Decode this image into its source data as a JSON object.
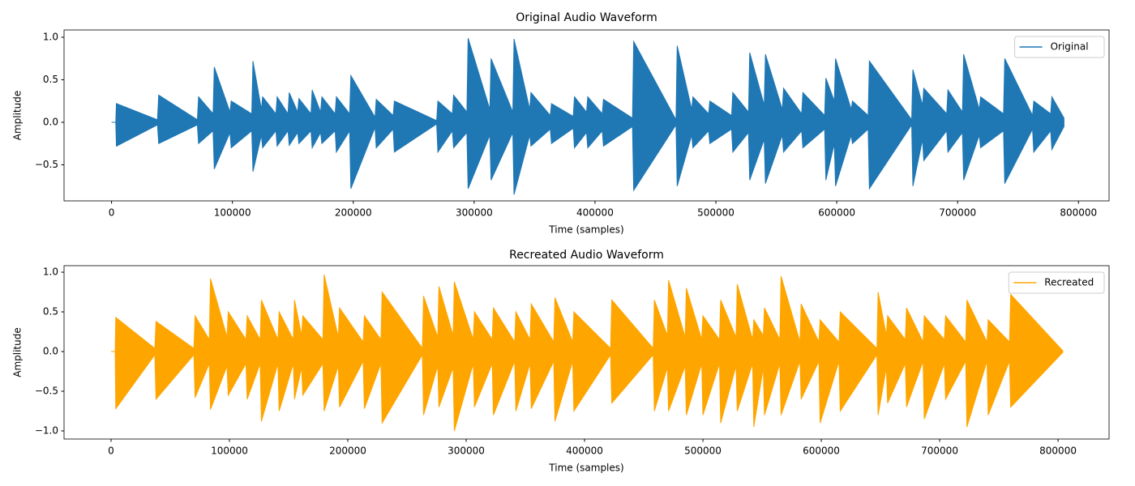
{
  "chart_data": [
    {
      "type": "waveform",
      "title": "Original Audio Waveform",
      "xlabel": "Time (samples)",
      "ylabel": "Amplitude",
      "xlim": [
        -39300,
        825300
      ],
      "ylim": [
        -0.924,
        1.086
      ],
      "xticks": [
        0,
        100000,
        200000,
        300000,
        400000,
        500000,
        600000,
        700000,
        800000
      ],
      "yticks": [
        {
          "value": -0.5,
          "label": "−0.5"
        },
        {
          "value": 0,
          "label": "0.0"
        },
        {
          "value": 0.5,
          "label": "0.5"
        },
        {
          "value": 1,
          "label": "1.0"
        }
      ],
      "legend": "upper right",
      "x": [
        0,
        3500,
        4000,
        38000,
        39000,
        71000,
        72000,
        84000,
        85000,
        98000,
        99000,
        116000,
        117000,
        124000,
        125000,
        136000,
        137000,
        146000,
        147000,
        154000,
        155000,
        165000,
        166000,
        173000,
        174000,
        185000,
        186000,
        197000,
        198000,
        218000,
        219000,
        233000,
        234000,
        269000,
        270000,
        282000,
        283000,
        294000,
        295000,
        313000,
        314000,
        332000,
        333000,
        346000,
        347000,
        363000,
        364000,
        382000,
        383000,
        393000,
        394000,
        406000,
        407000,
        431000,
        432000,
        467000,
        468000,
        480000,
        481000,
        494000,
        495000,
        513000,
        514000,
        527000,
        528000,
        540000,
        541000,
        555000,
        556000,
        571000,
        572000,
        590000,
        591000,
        598000,
        599000,
        612000,
        613000,
        626000,
        627000,
        662000,
        663000,
        671000,
        672000,
        691000,
        692000,
        704000,
        705000,
        718000,
        719000,
        738000,
        739000,
        762000,
        763000,
        777000,
        778000,
        788000
      ],
      "series": [
        {
          "name": "Original",
          "color": "#1f77b4",
          "high": [
            0,
            0,
            0.22,
            0.03,
            0.32,
            0.03,
            0.3,
            0.1,
            0.65,
            0.12,
            0.25,
            0.1,
            0.72,
            0.15,
            0.3,
            0.1,
            0.3,
            0.1,
            0.35,
            0.12,
            0.28,
            0.1,
            0.38,
            0.12,
            0.3,
            0.1,
            0.3,
            0.1,
            0.55,
            0.06,
            0.27,
            0.08,
            0.25,
            0.02,
            0.25,
            0.1,
            0.32,
            0.12,
            0.99,
            0.15,
            0.75,
            0.12,
            0.98,
            0.15,
            0.35,
            0.08,
            0.22,
            0.07,
            0.3,
            0.12,
            0.3,
            0.1,
            0.27,
            0.05,
            0.95,
            0.03,
            0.9,
            0.15,
            0.3,
            0.1,
            0.25,
            0.08,
            0.35,
            0.12,
            0.82,
            0.2,
            0.8,
            0.15,
            0.4,
            0.1,
            0.35,
            0.08,
            0.52,
            0.25,
            0.75,
            0.15,
            0.25,
            0.08,
            0.72,
            0.03,
            0.62,
            0.2,
            0.4,
            0.1,
            0.38,
            0.12,
            0.8,
            0.15,
            0.3,
            0.1,
            0.75,
            0.08,
            0.25,
            0.1,
            0.3,
            0.05
          ],
          "low": [
            0,
            0,
            -0.28,
            -0.03,
            -0.25,
            -0.03,
            -0.25,
            -0.1,
            -0.55,
            -0.12,
            -0.3,
            -0.1,
            -0.58,
            -0.15,
            -0.3,
            -0.1,
            -0.28,
            -0.1,
            -0.27,
            -0.12,
            -0.25,
            -0.1,
            -0.3,
            -0.12,
            -0.25,
            -0.1,
            -0.35,
            -0.1,
            -0.78,
            -0.06,
            -0.3,
            -0.08,
            -0.35,
            -0.02,
            -0.35,
            -0.1,
            -0.3,
            -0.12,
            -0.78,
            -0.15,
            -0.68,
            -0.12,
            -0.85,
            -0.15,
            -0.28,
            -0.08,
            -0.25,
            -0.07,
            -0.3,
            -0.12,
            -0.3,
            -0.1,
            -0.28,
            -0.05,
            -0.8,
            -0.03,
            -0.75,
            -0.15,
            -0.3,
            -0.1,
            -0.25,
            -0.08,
            -0.35,
            -0.12,
            -0.68,
            -0.2,
            -0.72,
            -0.15,
            -0.35,
            -0.1,
            -0.3,
            -0.08,
            -0.68,
            -0.25,
            -0.75,
            -0.15,
            -0.25,
            -0.08,
            -0.78,
            -0.03,
            -0.75,
            -0.2,
            -0.45,
            -0.1,
            -0.35,
            -0.12,
            -0.68,
            -0.15,
            -0.3,
            -0.1,
            -0.72,
            -0.08,
            -0.35,
            -0.1,
            -0.32,
            -0.05
          ]
        }
      ]
    },
    {
      "type": "waveform",
      "title": "Recreated Audio Waveform",
      "xlabel": "Time (samples)",
      "ylabel": "Amplitude",
      "xlim": [
        -39700,
        843100
      ],
      "ylim": [
        -1.102,
        1.082
      ],
      "xticks": [
        0,
        100000,
        200000,
        300000,
        400000,
        500000,
        600000,
        700000,
        800000
      ],
      "yticks": [
        {
          "value": -1,
          "label": "−1.0"
        },
        {
          "value": -0.5,
          "label": "−0.5"
        },
        {
          "value": 0,
          "label": "0.0"
        },
        {
          "value": 0.5,
          "label": "0.5"
        },
        {
          "value": 1,
          "label": "1.0"
        }
      ],
      "legend": "upper right",
      "x": [
        0,
        3500,
        4000,
        37000,
        38000,
        70000,
        71000,
        83000,
        84000,
        98000,
        99000,
        114000,
        115000,
        126000,
        127000,
        141000,
        142000,
        154000,
        155000,
        161000,
        162000,
        179000,
        180000,
        192000,
        193000,
        213000,
        214000,
        228000,
        229000,
        263000,
        264000,
        276000,
        277000,
        289000,
        290000,
        306000,
        307000,
        322000,
        323000,
        341000,
        342000,
        354000,
        355000,
        374000,
        375000,
        390000,
        391000,
        422000,
        423000,
        458000,
        459000,
        470000,
        471000,
        485000,
        486000,
        499000,
        500000,
        514000,
        515000,
        528000,
        529000,
        542000,
        543000,
        551000,
        552000,
        565000,
        566000,
        582000,
        583000,
        598000,
        599000,
        615000,
        616000,
        647000,
        648000,
        655000,
        656000,
        671000,
        672000,
        686000,
        687000,
        704000,
        705000,
        722000,
        723000,
        740000,
        741000,
        759000,
        760000,
        804000
      ],
      "series": [
        {
          "name": "Recreated",
          "color": "#ffa500",
          "high": [
            0,
            0,
            0.43,
            0.04,
            0.38,
            0.04,
            0.45,
            0.15,
            0.92,
            0.18,
            0.5,
            0.15,
            0.45,
            0.15,
            0.65,
            0.15,
            0.5,
            0.15,
            0.65,
            0.2,
            0.45,
            0.15,
            0.97,
            0.18,
            0.55,
            0.12,
            0.45,
            0.15,
            0.75,
            0.04,
            0.7,
            0.18,
            0.82,
            0.2,
            0.88,
            0.15,
            0.5,
            0.15,
            0.55,
            0.12,
            0.5,
            0.15,
            0.6,
            0.12,
            0.68,
            0.12,
            0.5,
            0.04,
            0.65,
            0.04,
            0.65,
            0.2,
            0.9,
            0.18,
            0.8,
            0.15,
            0.45,
            0.15,
            0.65,
            0.18,
            0.85,
            0.15,
            0.4,
            0.2,
            0.55,
            0.15,
            0.95,
            0.12,
            0.6,
            0.12,
            0.4,
            0.12,
            0.5,
            0.04,
            0.75,
            0.2,
            0.45,
            0.15,
            0.55,
            0.12,
            0.45,
            0.15,
            0.45,
            0.12,
            0.65,
            0.12,
            0.4,
            0.12,
            0.72,
            0.01
          ],
          "low": [
            0,
            0,
            -0.72,
            -0.04,
            -0.6,
            -0.04,
            -0.58,
            -0.15,
            -0.73,
            -0.18,
            -0.55,
            -0.15,
            -0.6,
            -0.15,
            -0.88,
            -0.15,
            -0.75,
            -0.15,
            -0.6,
            -0.2,
            -0.55,
            -0.15,
            -0.75,
            -0.18,
            -0.7,
            -0.12,
            -0.72,
            -0.15,
            -0.9,
            -0.04,
            -0.8,
            -0.18,
            -0.7,
            -0.2,
            -1.0,
            -0.15,
            -0.7,
            -0.15,
            -0.8,
            -0.12,
            -0.75,
            -0.15,
            -0.72,
            -0.12,
            -0.88,
            -0.12,
            -0.75,
            -0.04,
            -0.65,
            -0.04,
            -0.75,
            -0.2,
            -0.75,
            -0.18,
            -0.8,
            -0.15,
            -0.8,
            -0.15,
            -0.9,
            -0.18,
            -0.75,
            -0.15,
            -0.95,
            -0.2,
            -0.8,
            -0.15,
            -0.8,
            -0.12,
            -0.6,
            -0.12,
            -0.9,
            -0.12,
            -0.75,
            -0.04,
            -0.8,
            -0.2,
            -0.65,
            -0.15,
            -0.7,
            -0.12,
            -0.85,
            -0.15,
            -0.6,
            -0.12,
            -0.95,
            -0.12,
            -0.8,
            -0.12,
            -0.7,
            -0.01
          ]
        }
      ]
    }
  ]
}
